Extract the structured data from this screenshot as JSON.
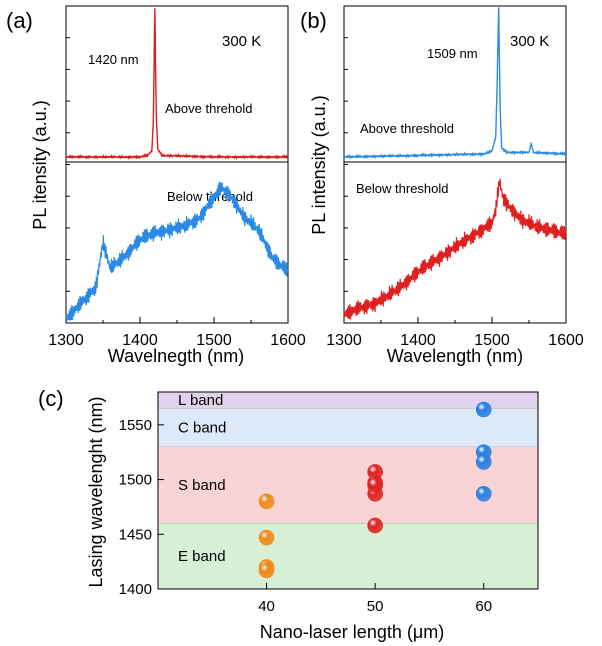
{
  "chart_data": [
    {
      "panel": "(a)",
      "type": "line",
      "temperature_label": "300 K",
      "xlabel": "Wavelnegth (nm)",
      "ylabel": "PL itensity (a.u.)",
      "xlim": [
        1300,
        1600
      ],
      "xticks": [
        "1300",
        "1400",
        "1500",
        "1600"
      ],
      "series": [
        {
          "name": "Above threhold",
          "color": "#d42020",
          "peak_label": "1420 nm",
          "x": [
            1300,
            1400,
            1410,
            1416,
            1418,
            1420,
            1422,
            1424,
            1430,
            1500,
            1600
          ],
          "values": [
            0.02,
            0.02,
            0.03,
            0.06,
            0.25,
            1.0,
            0.3,
            0.07,
            0.03,
            0.02,
            0.02
          ]
        },
        {
          "name": "Below threhold",
          "color": "#2b8ae6",
          "x": [
            1300,
            1320,
            1340,
            1350,
            1360,
            1380,
            1400,
            1420,
            1440,
            1460,
            1480,
            1500,
            1510,
            1520,
            1530,
            1540,
            1560,
            1580,
            1600
          ],
          "values": [
            0.02,
            0.12,
            0.22,
            0.5,
            0.34,
            0.42,
            0.52,
            0.56,
            0.58,
            0.6,
            0.65,
            0.78,
            0.84,
            0.8,
            0.74,
            0.66,
            0.58,
            0.4,
            0.32
          ]
        }
      ]
    },
    {
      "panel": "(b)",
      "type": "line",
      "temperature_label": "300 K",
      "xlabel": "Wavelength (nm)",
      "ylabel": "PL intensity (a.u.)",
      "xlim": [
        1300,
        1600
      ],
      "xticks": [
        "1300",
        "1400",
        "1500",
        "1600"
      ],
      "series": [
        {
          "name": "Above threshold",
          "color": "#2b8ae6",
          "peak_label": "1509 nm",
          "x": [
            1300,
            1400,
            1490,
            1500,
            1505,
            1507,
            1509,
            1511,
            1513,
            1520,
            1550,
            1553,
            1556,
            1600
          ],
          "values": [
            0.02,
            0.03,
            0.04,
            0.06,
            0.15,
            0.5,
            1.0,
            0.35,
            0.08,
            0.05,
            0.05,
            0.11,
            0.05,
            0.04
          ]
        },
        {
          "name": "Below threshold",
          "color": "#e01f1f",
          "x": [
            1300,
            1320,
            1340,
            1360,
            1380,
            1400,
            1420,
            1440,
            1460,
            1480,
            1500,
            1505,
            1510,
            1515,
            1520,
            1540,
            1560,
            1580,
            1600
          ],
          "values": [
            0.05,
            0.09,
            0.12,
            0.17,
            0.24,
            0.32,
            0.38,
            0.44,
            0.5,
            0.56,
            0.62,
            0.7,
            0.88,
            0.78,
            0.74,
            0.64,
            0.6,
            0.58,
            0.55
          ]
        }
      ]
    },
    {
      "panel": "(c)",
      "type": "scatter",
      "xlabel": "Nano-laser length (μm)",
      "ylabel": "Lasing wavelenght (nm)",
      "xlim": [
        30,
        65
      ],
      "ylim": [
        1400,
        1580
      ],
      "xticks": [
        40,
        50,
        60
      ],
      "yticks": [
        1400,
        1450,
        1500,
        1550
      ],
      "bands": [
        {
          "name": "E band",
          "from": 1400,
          "to": 1460,
          "color": "#d7efd5"
        },
        {
          "name": "S band",
          "from": 1460,
          "to": 1530,
          "color": "#f9d4d4"
        },
        {
          "name": "C band",
          "from": 1530,
          "to": 1565,
          "color": "#dde9f8"
        },
        {
          "name": "L band",
          "from": 1565,
          "to": 1580,
          "color": "#e2d2ee"
        }
      ],
      "series": [
        {
          "color": "#f08a1c",
          "x": [
            40,
            40,
            40,
            40
          ],
          "values": [
            1480,
            1447,
            1420,
            1417
          ]
        },
        {
          "color": "#e02424",
          "x": [
            50,
            50,
            50,
            50,
            50
          ],
          "values": [
            1507,
            1497,
            1487,
            1458,
            1495
          ]
        },
        {
          "color": "#2a7fe0",
          "x": [
            60,
            60,
            60,
            60
          ],
          "values": [
            1564,
            1525,
            1516,
            1487
          ]
        }
      ]
    }
  ]
}
